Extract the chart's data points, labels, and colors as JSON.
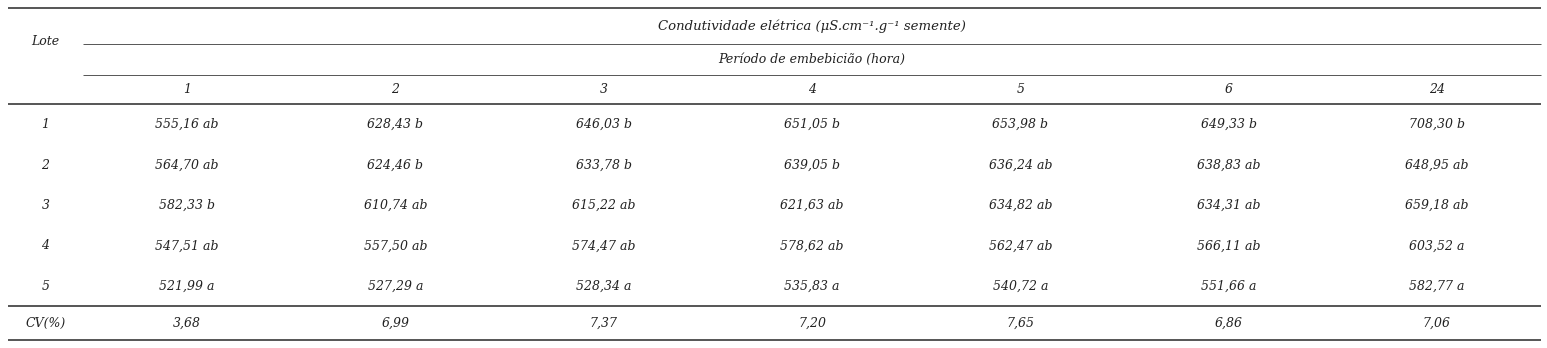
{
  "title": "Condutividade elétrica (μS.cm⁻¹.g⁻¹ semente)",
  "subtitle": "Período de embebicião (hora)",
  "col_header_left": "Lote",
  "col_headers": [
    "1",
    "2",
    "3",
    "4",
    "5",
    "6",
    "24"
  ],
  "row_headers": [
    "1",
    "2",
    "3",
    "4",
    "5",
    "CV(%)"
  ],
  "data": [
    [
      "555,16 ab",
      "628,43 b",
      "646,03 b",
      "651,05 b",
      "653,98 b",
      "649,33 b",
      "708,30 b"
    ],
    [
      "564,70 ab",
      "624,46 b",
      "633,78 b",
      "639,05 b",
      "636,24 ab",
      "638,83 ab",
      "648,95 ab"
    ],
    [
      "582,33 b",
      "610,74 ab",
      "615,22 ab",
      "621,63 ab",
      "634,82 ab",
      "634,31 ab",
      "659,18 ab"
    ],
    [
      "547,51 ab",
      "557,50 ab",
      "574,47 ab",
      "578,62 ab",
      "562,47 ab",
      "566,11 ab",
      "603,52 a"
    ],
    [
      "521,99 a",
      "527,29 a",
      "528,34 a",
      "535,83 a",
      "540,72 a",
      "551,66 a",
      "582,77 a"
    ],
    [
      "3,68",
      "6,99",
      "7,37",
      "7,20",
      "7,65",
      "6,86",
      "7,06"
    ]
  ],
  "text_color": "#222222",
  "line_color": "#555555",
  "font_size": 9.0,
  "figwidth": 15.47,
  "figheight": 3.48,
  "dpi": 100
}
